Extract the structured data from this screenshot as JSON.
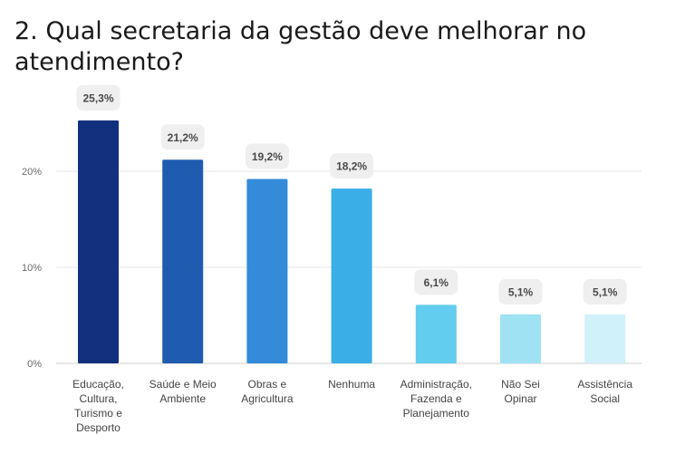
{
  "title": "2. Qual secretaria da gestão deve melhorar no atendimento?",
  "chart_data": {
    "type": "bar",
    "categories": [
      "Educação, Cultura, Turismo e Desporto",
      "Saúde e Meio Ambiente",
      "Obras e Agricultura",
      "Nenhuma",
      "Administração, Fazenda e Planejamento",
      "Não Sei Opinar",
      "Assistência Social"
    ],
    "category_lines": [
      [
        "Educação,",
        "Cultura,",
        "Turismo e",
        "Desporto"
      ],
      [
        "Saúde e Meio",
        "Ambiente"
      ],
      [
        "Obras e",
        "Agricultura"
      ],
      [
        "Nenhuma"
      ],
      [
        "Administração,",
        "Fazenda e",
        "Planejamento"
      ],
      [
        "Não Sei",
        "Opinar"
      ],
      [
        "Assistência",
        "Social"
      ]
    ],
    "values": [
      25.3,
      21.2,
      19.2,
      18.2,
      6.1,
      5.1,
      5.1
    ],
    "value_labels": [
      "25,3%",
      "21,2%",
      "19,2%",
      "18,2%",
      "6,1%",
      "5,1%",
      "5,1%"
    ],
    "colors": [
      "#13307f",
      "#1f5cb0",
      "#338bd9",
      "#3aaee6",
      "#62cdee",
      "#9ee2f4",
      "#d1f1fa"
    ],
    "yticks": [
      0,
      10,
      20
    ],
    "ytick_labels": [
      "0%",
      "10%",
      "20%"
    ],
    "ylim": [
      0,
      28.5
    ],
    "grid": true
  }
}
